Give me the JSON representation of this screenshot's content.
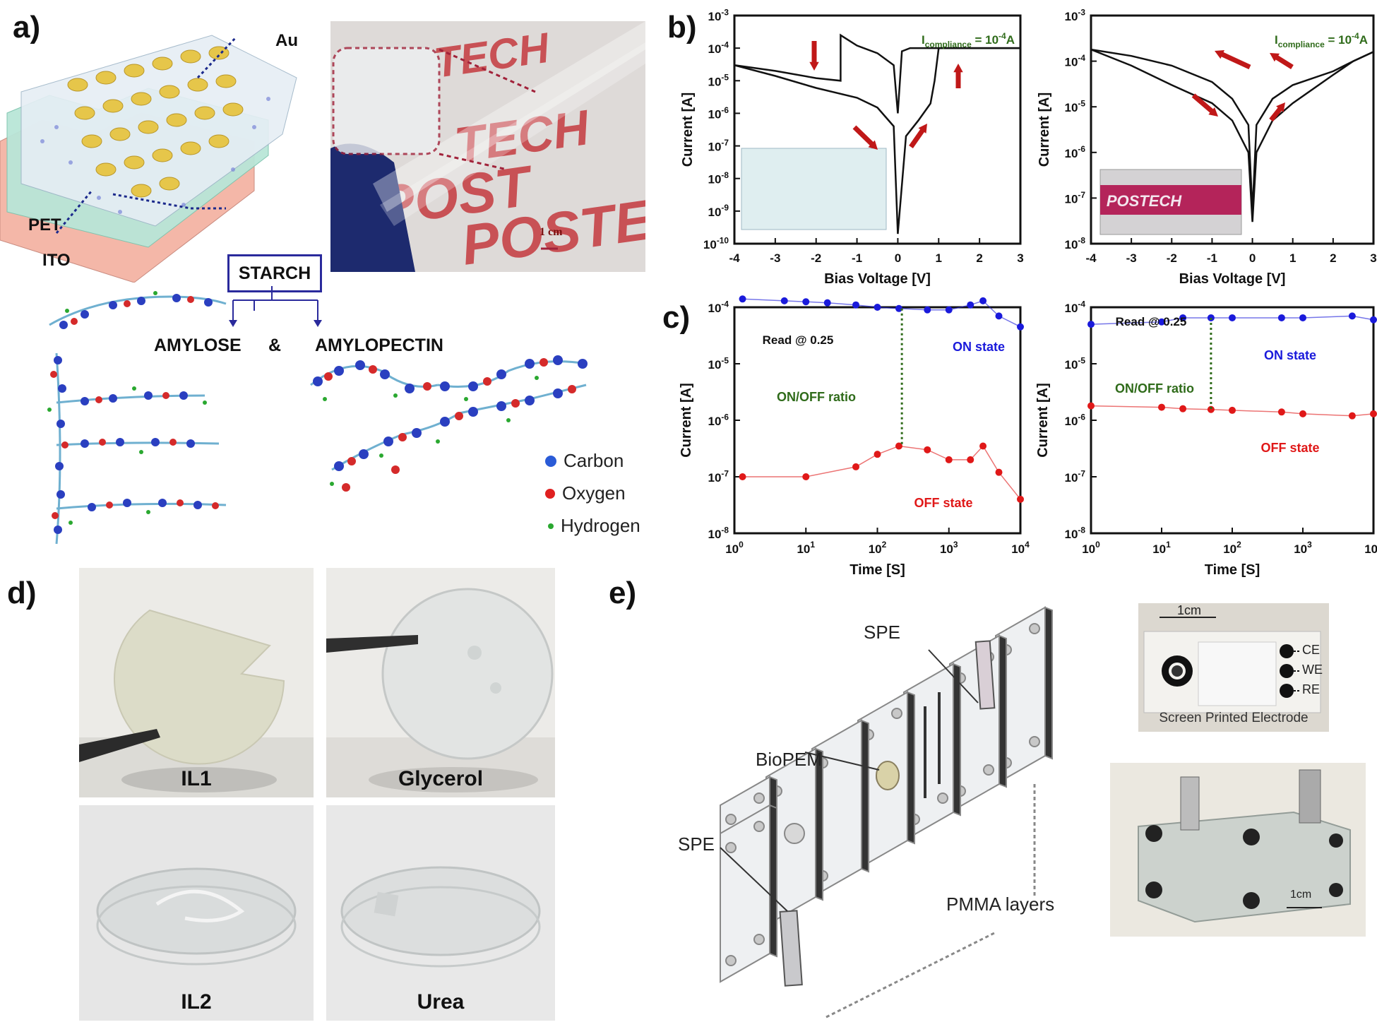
{
  "panels": {
    "a": "a)",
    "b": "b)",
    "c": "c)",
    "d": "d)",
    "e": "e)"
  },
  "panel_a": {
    "labels": {
      "au": "Au",
      "pet": "PET",
      "ito": "ITO",
      "starch": "STARCH",
      "amylose": "AMYLOSE",
      "amp": "&",
      "amylopectin": "AMYLOPECTIN",
      "scale": "1 cm"
    },
    "legend": [
      {
        "name": "Carbon",
        "color": "#2a5bd7"
      },
      {
        "name": "Oxygen",
        "color": "#e02020"
      },
      {
        "name": "Hydrogen",
        "color": "#2aa830"
      }
    ],
    "photo_brand": "POSTECH"
  },
  "panel_b": {
    "xlabel": "Bias Voltage [V]",
    "ylabel": "Current [A]",
    "compliance_text": "I",
    "compliance_sub": "compliance",
    "compliance_rest": " = 10",
    "compliance_sup": "-4",
    "compliance_unit": "A",
    "x_ticks": [
      "-4",
      "-3",
      "-2",
      "-1",
      "0",
      "1",
      "2",
      "3"
    ],
    "left_y_ticks": [
      "10",
      "10",
      "10",
      "10",
      "10",
      "10",
      "10",
      "10"
    ],
    "left_y_exps": [
      "-3",
      "-4",
      "-5",
      "-6",
      "-7",
      "-8",
      "-9",
      "-10"
    ],
    "right_y_ticks": [
      "10",
      "10",
      "10",
      "10",
      "10",
      "10"
    ],
    "right_y_exps": [
      "-3",
      "-4",
      "-5",
      "-6",
      "-7",
      "-8"
    ],
    "inset_brand": "POSTECH"
  },
  "panel_c": {
    "xlabel": "Time [S]",
    "ylabel": "Current [A]",
    "read_label": "Read @ 0.25",
    "ratio_label": "ON/OFF ratio",
    "on_label": "ON state",
    "off_label": "OFF state",
    "x_ticks_base": [
      "10",
      "10",
      "10",
      "10",
      "10"
    ],
    "x_ticks_exp": [
      "0",
      "1",
      "2",
      "3",
      "4"
    ],
    "y_ticks_base": [
      "10",
      "10",
      "10",
      "10",
      "10"
    ],
    "y_ticks_exp": [
      "-4",
      "-5",
      "-6",
      "-7",
      "-8"
    ],
    "on_color": "#1a1adb",
    "off_color": "#e01818"
  },
  "panel_d": {
    "captions": [
      "IL1",
      "Glycerol",
      "IL2",
      "Urea"
    ]
  },
  "panel_e": {
    "labels": {
      "spe_top": "SPE",
      "biopem": "BioPEM",
      "spe_bottom": "SPE",
      "pmma": "PMMA layers"
    },
    "electrode": {
      "scale": "1cm",
      "ce": "CE",
      "we": "WE",
      "re": "RE",
      "caption": "Screen Printed Electrode"
    },
    "device_scale": "1cm"
  },
  "chart_data": [
    {
      "type": "line",
      "title": "",
      "xlabel": "Bias Voltage [V]",
      "ylabel": "Current [A]",
      "yscale": "log",
      "xlim": [
        -4,
        3
      ],
      "ylim": [
        1e-10,
        0.001
      ],
      "annotation": "Icompliance = 10-4A",
      "series": [
        {
          "x": [
            -4,
            -3,
            -2,
            -1.4,
            -1.4,
            -1,
            -0.5,
            -0.1,
            0,
            0.1,
            0.3,
            1,
            3
          ],
          "y": [
            3e-05,
            2e-05,
            1.2e-05,
            1e-05,
            0.00025,
            0.00012,
            7e-05,
            3e-05,
            1e-06,
            8e-05,
            0.0001,
            0.0001,
            0.0001
          ]
        },
        {
          "x": [
            -4,
            -3,
            -2,
            -1,
            -0.5,
            -0.1,
            0,
            0.2,
            0.5,
            0.8,
            0.9,
            1,
            3
          ],
          "y": [
            3e-05,
            1.4e-05,
            6e-06,
            3e-06,
            1.5e-06,
            4e-07,
            2e-10,
            2e-07,
            6e-07,
            2e-06,
            1e-05,
            0.0001,
            0.0001
          ]
        }
      ]
    },
    {
      "type": "line",
      "title": "",
      "xlabel": "Bias Voltage [V]",
      "ylabel": "Current [A]",
      "yscale": "log",
      "xlim": [
        -4,
        3
      ],
      "ylim": [
        1e-08,
        0.001
      ],
      "annotation": "Icompliance = 10-4A",
      "series": [
        {
          "x": [
            -4,
            -3,
            -2,
            -1,
            -0.5,
            -0.1,
            0,
            0.1,
            0.5,
            1,
            2,
            2.5,
            3
          ],
          "y": [
            0.00018,
            0.00013,
            8e-05,
            3.5e-05,
            1.5e-05,
            4e-06,
            5e-08,
            4e-06,
            1.5e-05,
            3e-05,
            6e-05,
            0.0001,
            0.00016
          ]
        },
        {
          "x": [
            -4,
            -3,
            -2,
            -1,
            -0.5,
            -0.1,
            0,
            0.1,
            0.5,
            1,
            2,
            2.5,
            3
          ],
          "y": [
            0.00018,
            8e-05,
            3e-05,
            1.2e-05,
            5e-06,
            1e-06,
            3e-08,
            1e-06,
            5e-06,
            1.2e-05,
            5e-05,
            0.0001,
            0.00016
          ]
        }
      ]
    },
    {
      "type": "scatter",
      "title": "",
      "xlabel": "Time [S]",
      "ylabel": "Current [A]",
      "xscale": "log",
      "yscale": "log",
      "xlim": [
        1,
        10000
      ],
      "ylim": [
        1e-08,
        0.0001
      ],
      "series": [
        {
          "name": "ON state",
          "x": [
            1.3,
            5,
            10,
            20,
            50,
            100,
            200,
            500,
            1000,
            2000,
            3000,
            5000,
            10000
          ],
          "y": [
            0.00014,
            0.00013,
            0.000125,
            0.00012,
            0.00011,
            0.0001,
            9.5e-05,
            9e-05,
            9e-05,
            0.00011,
            0.00013,
            7e-05,
            4.5e-05
          ]
        },
        {
          "name": "OFF state",
          "x": [
            1.3,
            10,
            50,
            100,
            200,
            500,
            1000,
            2000,
            3000,
            5000,
            10000
          ],
          "y": [
            1e-07,
            1e-07,
            1.5e-07,
            2.5e-07,
            3.5e-07,
            3e-07,
            2e-07,
            2e-07,
            3.5e-07,
            1.2e-07,
            4e-08
          ]
        }
      ]
    },
    {
      "type": "scatter",
      "title": "",
      "xlabel": "Time [S]",
      "ylabel": "Current [A]",
      "xscale": "log",
      "yscale": "log",
      "xlim": [
        1,
        10000
      ],
      "ylim": [
        1e-08,
        0.0001
      ],
      "series": [
        {
          "name": "ON state",
          "x": [
            1,
            10,
            20,
            50,
            100,
            500,
            1000,
            5000,
            10000
          ],
          "y": [
            5e-05,
            5.5e-05,
            6.5e-05,
            6.5e-05,
            6.5e-05,
            6.5e-05,
            6.5e-05,
            7e-05,
            6e-05
          ]
        },
        {
          "name": "OFF state",
          "x": [
            1,
            10,
            20,
            50,
            100,
            500,
            1000,
            5000,
            10000
          ],
          "y": [
            1.8e-06,
            1.7e-06,
            1.6e-06,
            1.55e-06,
            1.5e-06,
            1.4e-06,
            1.3e-06,
            1.2e-06,
            1.3e-06
          ]
        }
      ]
    }
  ]
}
